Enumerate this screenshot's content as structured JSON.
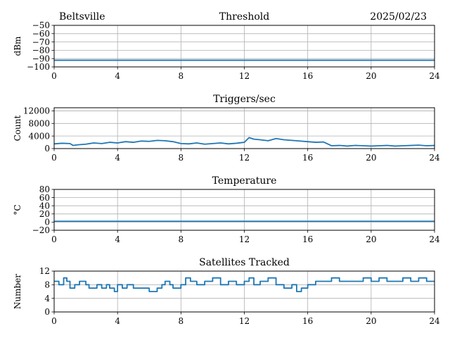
{
  "header": {
    "location": "Beltsville",
    "date": "2025/02/23"
  },
  "line_color": "#1f77b4",
  "chart_data": [
    {
      "type": "line",
      "title": "Threshold",
      "xlabel": "",
      "ylabel": "dBm",
      "xlim": [
        0,
        24
      ],
      "ylim": [
        -100,
        -50
      ],
      "grid": true,
      "x_ticks": [
        0,
        4,
        8,
        12,
        16,
        20,
        24
      ],
      "y_ticks": [
        -50,
        -60,
        -70,
        -80,
        -90,
        -100
      ],
      "x_tick_labels": [
        "0",
        "4",
        "8",
        "12",
        "16",
        "20",
        "24"
      ],
      "y_tick_labels": [
        "−50",
        "−60",
        "−70",
        "−80",
        "−90",
        "−100"
      ],
      "series": [
        {
          "x": [
            0,
            1.2,
            2,
            4,
            6,
            8,
            10,
            12,
            14,
            16,
            17,
            18,
            20,
            22,
            24
          ],
          "y": [
            -92,
            -92,
            -92,
            -92,
            -92,
            -92,
            -92,
            -92,
            -92,
            -92,
            -92,
            -92,
            -92,
            -92,
            -92
          ]
        }
      ]
    },
    {
      "type": "line",
      "title": "Triggers/sec",
      "xlabel": "",
      "ylabel": "Count",
      "xlim": [
        0,
        24
      ],
      "ylim": [
        0,
        13000
      ],
      "grid": true,
      "x_ticks": [
        0,
        4,
        8,
        12,
        16,
        20,
        24
      ],
      "y_ticks": [
        0,
        4000,
        8000,
        12000
      ],
      "x_tick_labels": [
        "0",
        "4",
        "8",
        "12",
        "16",
        "20",
        "24"
      ],
      "y_tick_labels": [
        "0",
        "4000",
        "8000",
        "12000"
      ],
      "series": [
        {
          "x": [
            0,
            0.5,
            1.0,
            1.2,
            1.5,
            2.0,
            2.5,
            3.0,
            3.5,
            4.0,
            4.5,
            5.0,
            5.5,
            6.0,
            6.5,
            7.0,
            7.5,
            8.0,
            8.5,
            9.0,
            9.5,
            10.0,
            10.5,
            11.0,
            11.5,
            12.0,
            12.3,
            12.6,
            13.0,
            13.5,
            14.0,
            14.5,
            15.0,
            15.5,
            16.0,
            16.5,
            17.0,
            17.5,
            18.0,
            18.5,
            19.0,
            19.5,
            20.0,
            20.5,
            21.0,
            21.5,
            22.0,
            22.5,
            23.0,
            23.5,
            24.0
          ],
          "y": [
            1500,
            1700,
            1600,
            1000,
            1200,
            1400,
            1800,
            1600,
            2000,
            1800,
            2200,
            2000,
            2400,
            2300,
            2600,
            2500,
            2200,
            1600,
            1500,
            1800,
            1400,
            1600,
            1800,
            1500,
            1700,
            2000,
            3500,
            3000,
            2800,
            2500,
            3200,
            2800,
            2600,
            2400,
            2200,
            2000,
            2100,
            900,
            1000,
            800,
            1000,
            900,
            800,
            900,
            1000,
            800,
            900,
            1000,
            1100,
            900,
            1000
          ]
        }
      ]
    },
    {
      "type": "line",
      "title": "Temperature",
      "xlabel": "",
      "ylabel": "°C",
      "xlim": [
        0,
        24
      ],
      "ylim": [
        -20,
        80
      ],
      "grid": true,
      "x_ticks": [
        0,
        4,
        8,
        12,
        16,
        20,
        24
      ],
      "y_ticks": [
        -20,
        0,
        20,
        40,
        60,
        80
      ],
      "x_tick_labels": [
        "0",
        "4",
        "8",
        "12",
        "16",
        "20",
        "24"
      ],
      "y_tick_labels": [
        "−20",
        "0",
        "20",
        "40",
        "60",
        "80"
      ],
      "series": [
        {
          "x": [
            0,
            24
          ],
          "y": [
            2,
            2
          ]
        }
      ]
    },
    {
      "type": "line",
      "title": "Satellites Tracked",
      "xlabel": "",
      "ylabel": "Number",
      "xlim": [
        0,
        24
      ],
      "ylim": [
        0,
        12
      ],
      "grid": true,
      "x_ticks": [
        0,
        4,
        8,
        12,
        16,
        20,
        24
      ],
      "y_ticks": [
        0,
        4,
        8,
        12
      ],
      "x_tick_labels": [
        "0",
        "4",
        "8",
        "12",
        "16",
        "20",
        "24"
      ],
      "y_tick_labels": [
        "0",
        "4",
        "8",
        "12"
      ],
      "series": [
        {
          "step": true,
          "x": [
            0,
            0.3,
            0.6,
            0.8,
            1.0,
            1.3,
            1.6,
            2.0,
            2.2,
            2.7,
            3.0,
            3.3,
            3.5,
            3.8,
            4.0,
            4.3,
            4.6,
            5.0,
            5.5,
            6.0,
            6.5,
            6.8,
            7.0,
            7.3,
            7.5,
            8.0,
            8.3,
            8.6,
            9.0,
            9.5,
            10.0,
            10.5,
            11.0,
            11.5,
            12.0,
            12.3,
            12.6,
            13.0,
            13.5,
            14.0,
            14.5,
            15.0,
            15.3,
            15.6,
            16.0,
            16.5,
            17.0,
            17.5,
            18.0,
            18.5,
            19.0,
            19.5,
            20.0,
            20.5,
            21.0,
            21.5,
            22.0,
            22.5,
            23.0,
            23.5,
            24.0
          ],
          "y": [
            9,
            8,
            10,
            9,
            7,
            8,
            9,
            8,
            7,
            8,
            7,
            8,
            7,
            6,
            8,
            7,
            8,
            7,
            7,
            6,
            7,
            8,
            9,
            8,
            7,
            8,
            10,
            9,
            8,
            9,
            10,
            8,
            9,
            8,
            9,
            10,
            8,
            9,
            10,
            8,
            7,
            8,
            6,
            7,
            8,
            9,
            9,
            10,
            9,
            9,
            9,
            10,
            9,
            10,
            9,
            9,
            10,
            9,
            10,
            9,
            9
          ]
        }
      ]
    }
  ]
}
